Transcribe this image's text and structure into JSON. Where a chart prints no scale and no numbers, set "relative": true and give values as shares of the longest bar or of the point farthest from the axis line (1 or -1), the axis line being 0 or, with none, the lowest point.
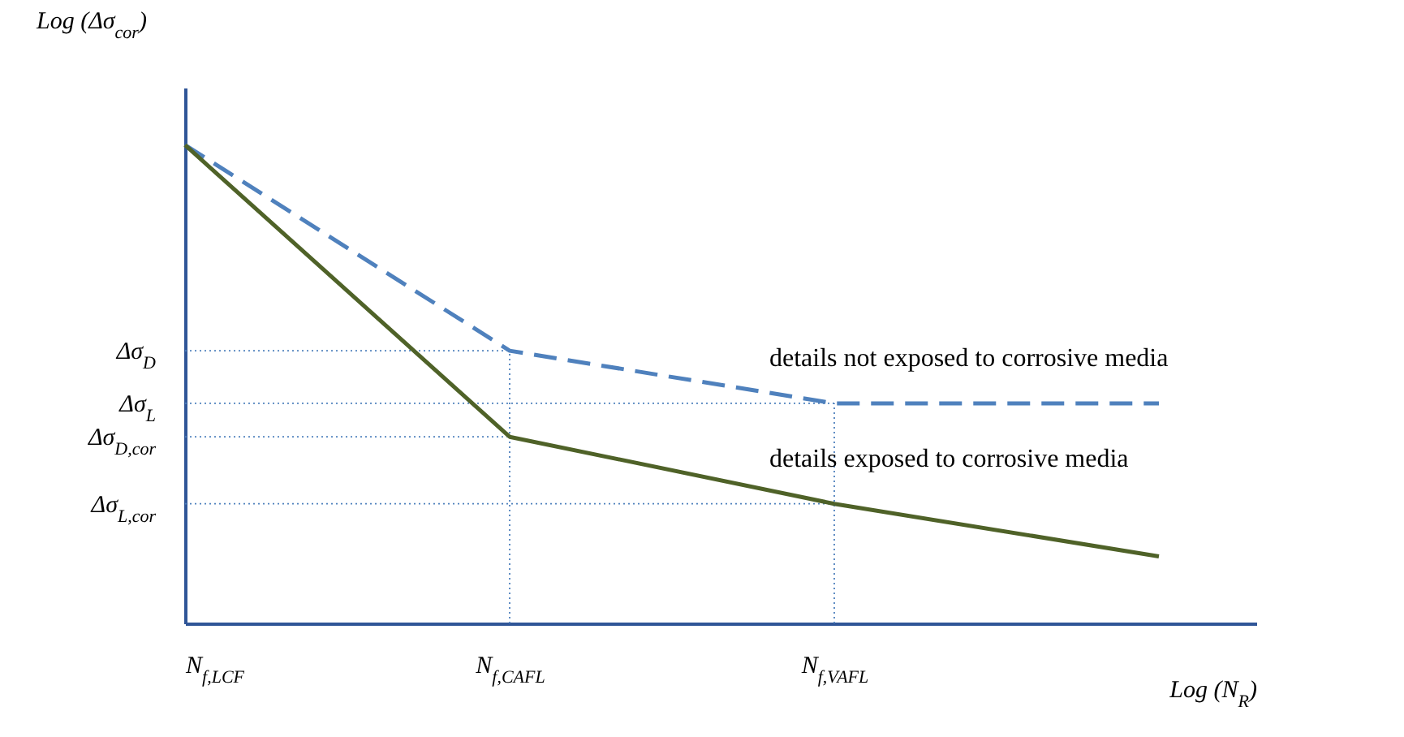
{
  "chart_data": {
    "type": "line",
    "relative": true,
    "xlabel": "Log (N$_{R}$)",
    "ylabel": "Log (Δσ$_{cor}$)",
    "categories": [
      "N$_{f,LCF}$",
      "N$_{f,CAFL}$",
      "N$_{f,VAFL}$",
      null
    ],
    "series": [
      {
        "name": "details not exposed to corrosive media",
        "color": "#4f81bd",
        "line_style": "dashed",
        "values": [
          1,
          0.57,
          0.46,
          0.46
        ]
      },
      {
        "name": "details exposed to corrosive media",
        "color": "#4f6228",
        "line_style": "solid",
        "values": [
          1,
          0.39,
          0.25,
          0.14
        ]
      }
    ],
    "ref_lines": [
      {
        "axis": "y",
        "value": 0.57,
        "label": "Δσ$_{D}$",
        "color": "#4f81bd",
        "line_style": "dotted"
      },
      {
        "axis": "y",
        "value": 0.46,
        "label": "Δσ$_{L}$",
        "color": "#4f81bd",
        "line_style": "dotted"
      },
      {
        "axis": "y",
        "value": 0.39,
        "label": "Δσ$_{D,cor}$",
        "color": "#4f81bd",
        "line_style": "dotted"
      },
      {
        "axis": "y",
        "value": 0.25,
        "label": "Δσ$_{L,cor}$",
        "color": "#4f81bd",
        "line_style": "dotted"
      },
      {
        "axis": "x",
        "value": "N$_{f,CAFL}$",
        "color": "#4f81bd",
        "line_style": "dotted"
      },
      {
        "axis": "x",
        "value": "N$_{f,VAFL}$",
        "color": "#4f81bd",
        "line_style": "dotted"
      }
    ],
    "marker": "none",
    "grid": false
  }
}
